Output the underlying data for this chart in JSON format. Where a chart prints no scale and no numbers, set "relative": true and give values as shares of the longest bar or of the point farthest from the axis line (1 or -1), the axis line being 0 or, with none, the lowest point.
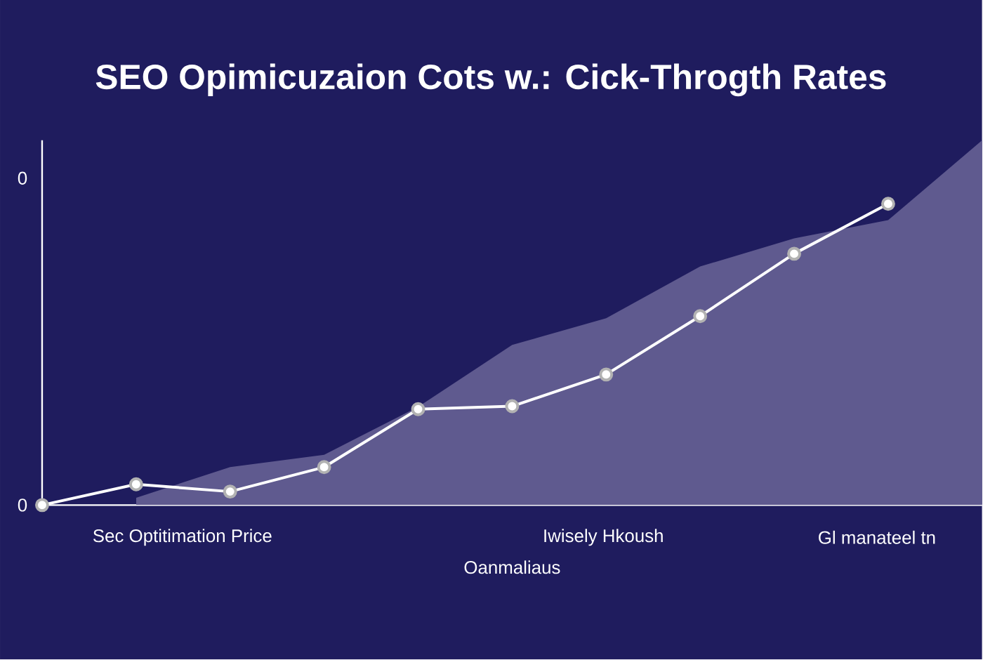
{
  "chart_data": {
    "type": "line",
    "title": "SEO Opimicuzaion Cots w.: Cick-Throgth Rates",
    "xlabel": "Oanmaliaus",
    "relative": true,
    "categories": [
      null,
      null,
      null,
      null,
      null,
      null,
      null,
      null,
      null,
      null,
      null
    ],
    "annotations": [
      "0",
      "0",
      "Sec Optitimation Price",
      "Iwisely Hkoush",
      "Gl manateel tn"
    ],
    "series": [
      {
        "type": "area",
        "color": "#5f5a8f",
        "values": [
          null,
          0.02,
          0.104,
          0.138,
          0.269,
          0.439,
          0.512,
          0.654,
          0.731,
          0.781,
          1.0
        ]
      },
      {
        "color": "#ffffff",
        "marker": "circle",
        "values": [
          0,
          0.057,
          0.037,
          0.104,
          0.263,
          0.271,
          0.358,
          0.518,
          0.689,
          0.826,
          null
        ]
      }
    ]
  }
}
